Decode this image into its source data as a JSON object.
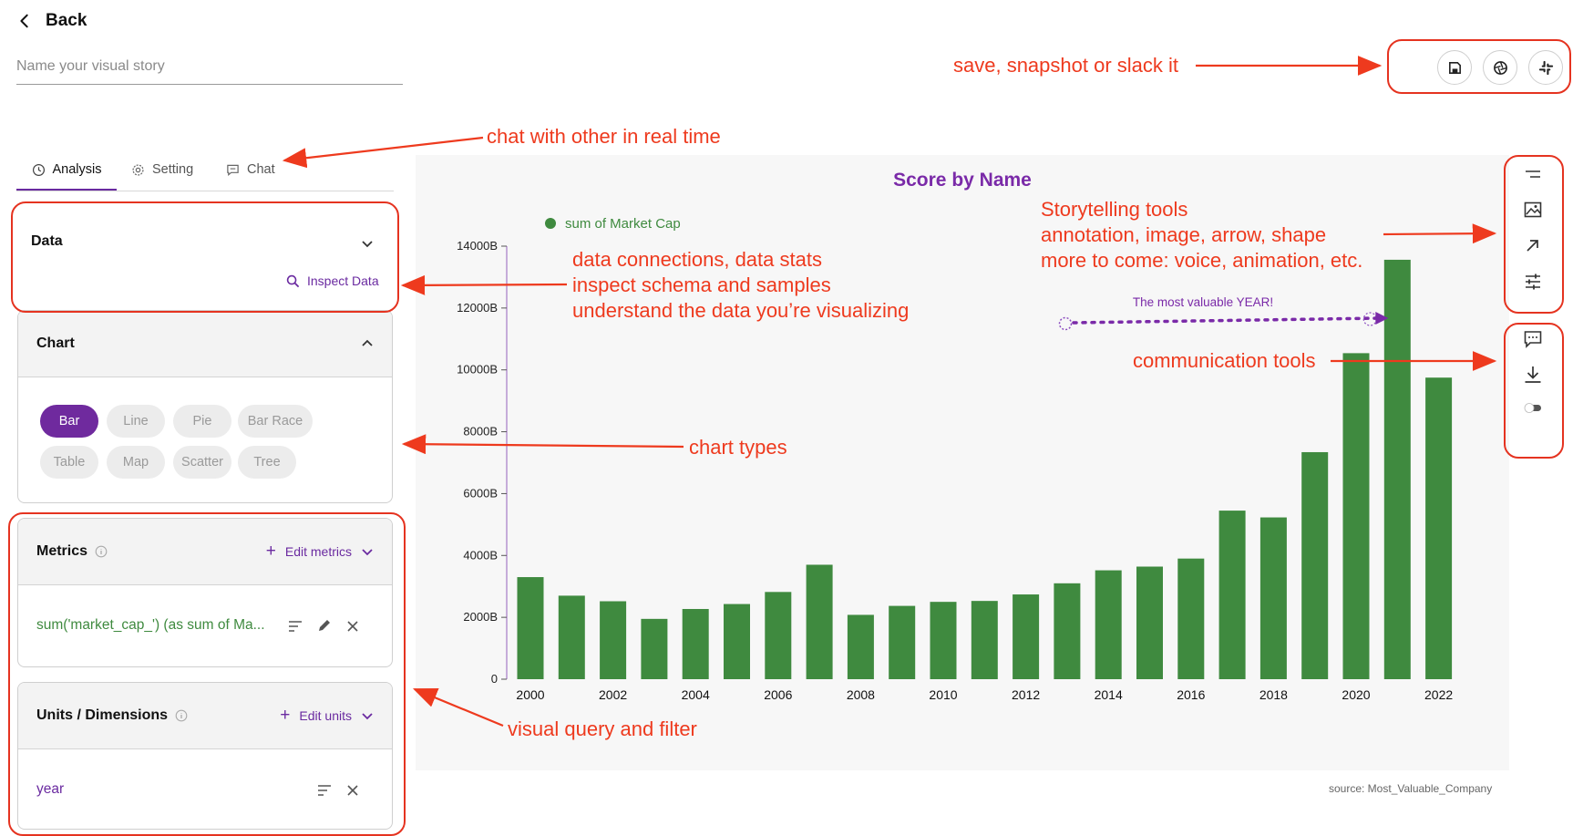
{
  "header": {
    "back_label": "Back",
    "story_placeholder": "Name your visual story"
  },
  "tabs": [
    {
      "label": "Analysis",
      "icon": "clock-icon",
      "active": true
    },
    {
      "label": "Setting",
      "icon": "gear-icon",
      "active": false
    },
    {
      "label": "Chat",
      "icon": "chat-icon",
      "active": false
    }
  ],
  "data_panel": {
    "title": "Data",
    "inspect_label": "Inspect Data"
  },
  "chart_panel": {
    "title": "Chart",
    "types": [
      "Bar",
      "Line",
      "Pie",
      "Bar Race",
      "Table",
      "Map",
      "Scatter",
      "Tree"
    ],
    "active_type": "Bar"
  },
  "metrics_panel": {
    "title": "Metrics",
    "edit_label": "Edit metrics",
    "item": "sum('market_cap_') (as sum of Ma..."
  },
  "units_panel": {
    "title": "Units / Dimensions",
    "edit_label": "Edit units",
    "item": "year"
  },
  "toolbar": {
    "save_icon": "save-icon",
    "snapshot_icon": "aperture-icon",
    "slack_icon": "slack-icon"
  },
  "side_tools": {
    "storytelling": [
      "minus-icon",
      "image-icon",
      "arrow-up-right-icon",
      "sliders-icon"
    ],
    "communication": [
      "comment-icon",
      "download-icon",
      "toggle-icon"
    ]
  },
  "colors": {
    "accent": "#6f2a9e",
    "bar": "#3f8a3f",
    "annotation": "#ee3a1e"
  },
  "chart_data": {
    "type": "bar",
    "title": "Score by Name",
    "legend": "sum of Market Cap",
    "legend_position": "top-left",
    "x": [
      2000,
      2001,
      2002,
      2003,
      2004,
      2005,
      2006,
      2007,
      2008,
      2009,
      2010,
      2011,
      2012,
      2013,
      2014,
      2015,
      2016,
      2017,
      2018,
      2019,
      2020,
      2021,
      2022
    ],
    "x_tick_labels": [
      "2000",
      "2002",
      "2004",
      "2006",
      "2008",
      "2010",
      "2012",
      "2014",
      "2016",
      "2018",
      "2020",
      "2022"
    ],
    "values": [
      3300,
      2700,
      2520,
      1950,
      2270,
      2430,
      2820,
      3700,
      2080,
      2370,
      2500,
      2530,
      2740,
      3100,
      3520,
      3640,
      3900,
      5450,
      5230,
      7340,
      10540,
      13560,
      9750
    ],
    "y_unit": "B",
    "y_tick_labels": [
      "0",
      "2000B",
      "4000B",
      "6000B",
      "8000B",
      "10000B",
      "12000B",
      "14000B"
    ],
    "ylim": [
      0,
      14000
    ],
    "grid": false,
    "annotation": "The most valuable YEAR!",
    "source": "source: Most_Valuable_Company"
  },
  "callouts": {
    "save": "save, snapshot or slack it",
    "chat": "chat with other in real time",
    "storytelling": [
      "Storytelling tools",
      "annotation, image, arrow, shape",
      "more to come: voice, animation, etc."
    ],
    "data": [
      "data connections, data stats",
      "inspect schema and samples",
      "understand the data you’re visualizing"
    ],
    "communication": "communication tools",
    "chart_types": "chart types",
    "query": "visual query and filter"
  }
}
